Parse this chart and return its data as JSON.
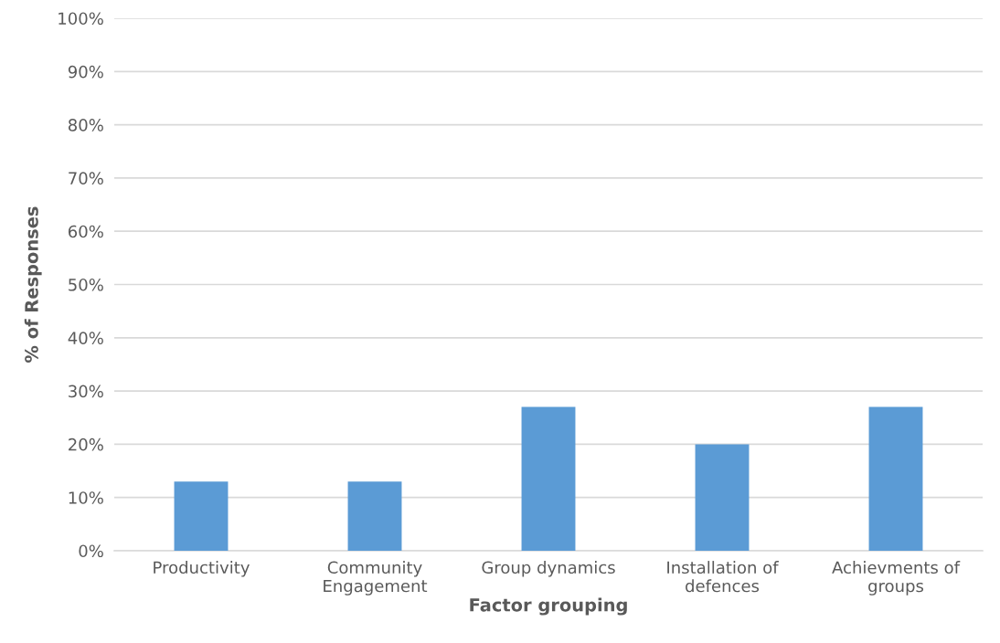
{
  "chart_data": {
    "type": "bar",
    "xlabel": "Factor grouping",
    "ylabel": "% of Responses",
    "categories": [
      "Productivity",
      "Community\nEngagement",
      "Group dynamics",
      "Installation of\ndefences",
      "Achievments of\ngroups"
    ],
    "values": [
      13,
      13,
      27,
      20,
      27
    ],
    "color": "#5b9bd5",
    "ylim": [
      0,
      100
    ],
    "yticks": [
      {
        "value": 0,
        "label": "0%"
      },
      {
        "value": 10,
        "label": "10%"
      },
      {
        "value": 20,
        "label": "20%"
      },
      {
        "value": 30,
        "label": "30%"
      },
      {
        "value": 40,
        "label": "40%"
      },
      {
        "value": 50,
        "label": "50%"
      },
      {
        "value": 60,
        "label": "60%"
      },
      {
        "value": 70,
        "label": "70%"
      },
      {
        "value": 80,
        "label": "80%"
      },
      {
        "value": 90,
        "label": "90%"
      },
      {
        "value": 100,
        "label": "100%"
      }
    ],
    "grid": "y",
    "legend": false
  }
}
